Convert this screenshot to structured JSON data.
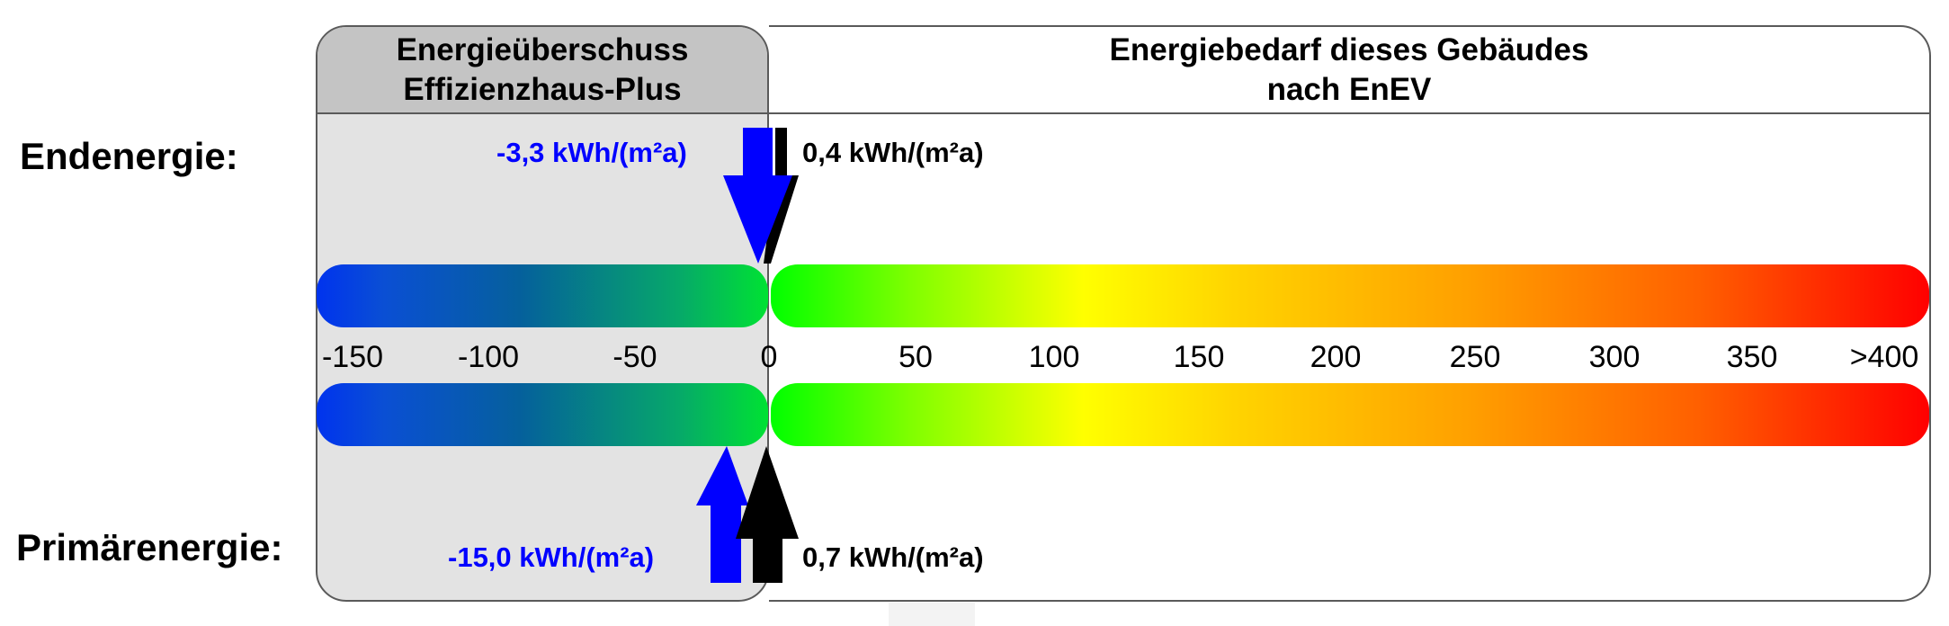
{
  "headers": {
    "left_line1": "Energieüberschuss",
    "left_line2": "Effizienzhaus-Plus",
    "right_line1": "Energiebedarf dieses Gebäudes",
    "right_line2": "nach EnEV"
  },
  "rows": {
    "end_label": "Endenergie:",
    "prim_label": "Primärenergie:"
  },
  "scale": {
    "ticks": [
      "-150",
      "-100",
      "-50",
      "0",
      "50",
      "100",
      "150",
      "200",
      "250",
      "300",
      "350",
      ">400"
    ]
  },
  "values": {
    "end_surplus": "-3,3 kWh/(m²a)",
    "end_demand": "0,4 kWh/(m²a)",
    "prim_surplus": "-15,0 kWh/(m²a)",
    "prim_demand": "0,7 kWh/(m²a)"
  },
  "colors": {
    "surplus_arrow": "#0000ff",
    "demand_arrow": "#000000",
    "panel_left_bg": "#e3e3e3",
    "panel_left_header": "#c4c4c4"
  }
}
